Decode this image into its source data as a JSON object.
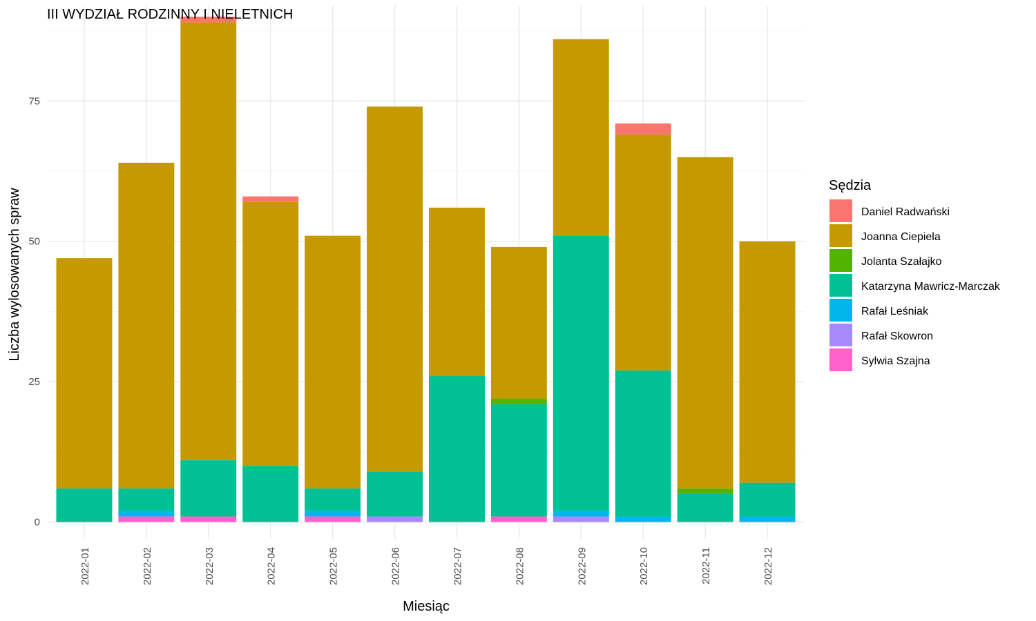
{
  "chart_data": {
    "type": "bar",
    "stacked": true,
    "title": "III WYDZIAŁ RODZINNY I NIELETNICH",
    "xlabel": "Miesiąc",
    "ylabel": "Liczba wylosowanych spraw",
    "ylim": [
      -3,
      92
    ],
    "yticks": [
      0,
      25,
      50,
      75
    ],
    "grid": true,
    "legend": {
      "title": "Sędzia",
      "position": "right"
    },
    "categories": [
      "2022-01",
      "2022-02",
      "2022-03",
      "2022-04",
      "2022-05",
      "2022-06",
      "2022-07",
      "2022-08",
      "2022-09",
      "2022-10",
      "2022-11",
      "2022-12"
    ],
    "series": [
      {
        "name": "Sylwia Szajna",
        "color": "#FF61CC",
        "values": [
          0,
          1,
          1,
          0,
          1,
          0,
          0,
          1,
          0,
          0,
          0,
          0
        ]
      },
      {
        "name": "Rafał Skowron",
        "color": "#A58AFF",
        "values": [
          0,
          0,
          0,
          0,
          0,
          1,
          0,
          0,
          1,
          0,
          0,
          0
        ]
      },
      {
        "name": "Rafał Leśniak",
        "color": "#00B6EB",
        "values": [
          0,
          1,
          0,
          0,
          1,
          0,
          0,
          0,
          1,
          1,
          0,
          1
        ]
      },
      {
        "name": "Katarzyna Mawricz-Marczak",
        "color": "#00C094",
        "values": [
          6,
          4,
          10,
          10,
          4,
          8,
          26,
          20,
          49,
          26,
          5,
          6
        ]
      },
      {
        "name": "Jolanta Szałajko",
        "color": "#53B400",
        "values": [
          0,
          0,
          0,
          0,
          0,
          0,
          0,
          1,
          0,
          0,
          1,
          0
        ]
      },
      {
        "name": "Joanna Ciepiela",
        "color": "#C49A00",
        "values": [
          41,
          58,
          78,
          47,
          45,
          65,
          30,
          27,
          35,
          42,
          59,
          43
        ]
      },
      {
        "name": "Daniel Radwański",
        "color": "#F8766D",
        "values": [
          0,
          0,
          1,
          1,
          0,
          0,
          0,
          0,
          0,
          2,
          0,
          0
        ]
      }
    ],
    "legend_order": [
      "Daniel Radwański",
      "Joanna Ciepiela",
      "Jolanta Szałajko",
      "Katarzyna Mawricz-Marczak",
      "Rafał Leśniak",
      "Rafał Skowron",
      "Sylwia Szajna"
    ]
  }
}
